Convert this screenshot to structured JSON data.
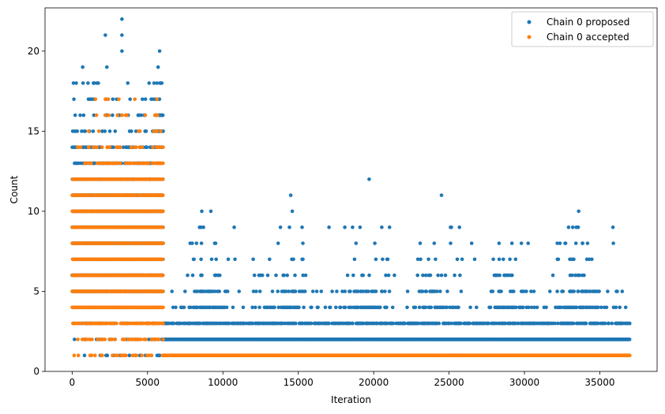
{
  "chart_data": {
    "type": "scatter",
    "title": "",
    "xlabel": "Iteration",
    "ylabel": "Count",
    "xlim": [
      -1800,
      38800
    ],
    "ylim": [
      0,
      22.7
    ],
    "xticks": [
      0,
      5000,
      10000,
      15000,
      20000,
      25000,
      30000,
      35000
    ],
    "xtick_labels": [
      "0",
      "5000",
      "10000",
      "15000",
      "20000",
      "25000",
      "30000",
      "35000"
    ],
    "yticks": [
      0,
      5,
      10,
      15,
      20
    ],
    "ytick_labels": [
      "0",
      "5",
      "10",
      "15",
      "20"
    ],
    "grid": false,
    "legend_position": "top-right",
    "series": [
      {
        "name": "Chain 0 proposed",
        "color": "#1f77b4",
        "x_range": [
          0,
          37000
        ],
        "description_points": {
          "early_phase_iter_0_6000": {
            "count_min": 1,
            "count_max": 22,
            "typical_top": 18
          },
          "late_phase_iter_6000_37000": {
            "dense_counts": [
              1,
              2,
              3
            ],
            "sparse_counts": [
              4,
              5,
              6,
              7,
              8,
              9,
              10,
              11,
              12
            ]
          }
        },
        "outliers": [
          {
            "x": 3300,
            "y": 22
          },
          {
            "x": 2200,
            "y": 21
          },
          {
            "x": 3300,
            "y": 21
          },
          {
            "x": 3300,
            "y": 20
          },
          {
            "x": 5800,
            "y": 20
          },
          {
            "x": 700,
            "y": 19
          },
          {
            "x": 2300,
            "y": 19
          },
          {
            "x": 5700,
            "y": 19
          },
          {
            "x": 19700,
            "y": 12
          },
          {
            "x": 14500,
            "y": 11
          },
          {
            "x": 24500,
            "y": 11
          },
          {
            "x": 14600,
            "y": 10
          },
          {
            "x": 8600,
            "y": 10
          },
          {
            "x": 9200,
            "y": 10
          },
          {
            "x": 33600,
            "y": 10
          },
          {
            "x": 10800,
            "y": 7
          },
          {
            "x": 35900,
            "y": 8
          },
          {
            "x": 26700,
            "y": 7
          }
        ]
      },
      {
        "name": "Chain 0 accepted",
        "color": "#ff7f0e",
        "x_range": [
          0,
          37000
        ],
        "description_points": {
          "early_phase_iter_0_6000": {
            "count_min": 1,
            "count_max": 17,
            "dense_counts": [
              1,
              2,
              3,
              4,
              5,
              6,
              7,
              8,
              9,
              10,
              11,
              12,
              13,
              14
            ]
          },
          "late_phase_iter_6000_37000": {
            "dense_counts": [
              1
            ]
          }
        },
        "outliers": [
          {
            "x": 2200,
            "y": 17
          },
          {
            "x": 3100,
            "y": 17
          },
          {
            "x": 3300,
            "y": 16
          },
          {
            "x": 5500,
            "y": 16
          },
          {
            "x": 4500,
            "y": 15
          },
          {
            "x": 1100,
            "y": 15
          }
        ]
      }
    ]
  }
}
